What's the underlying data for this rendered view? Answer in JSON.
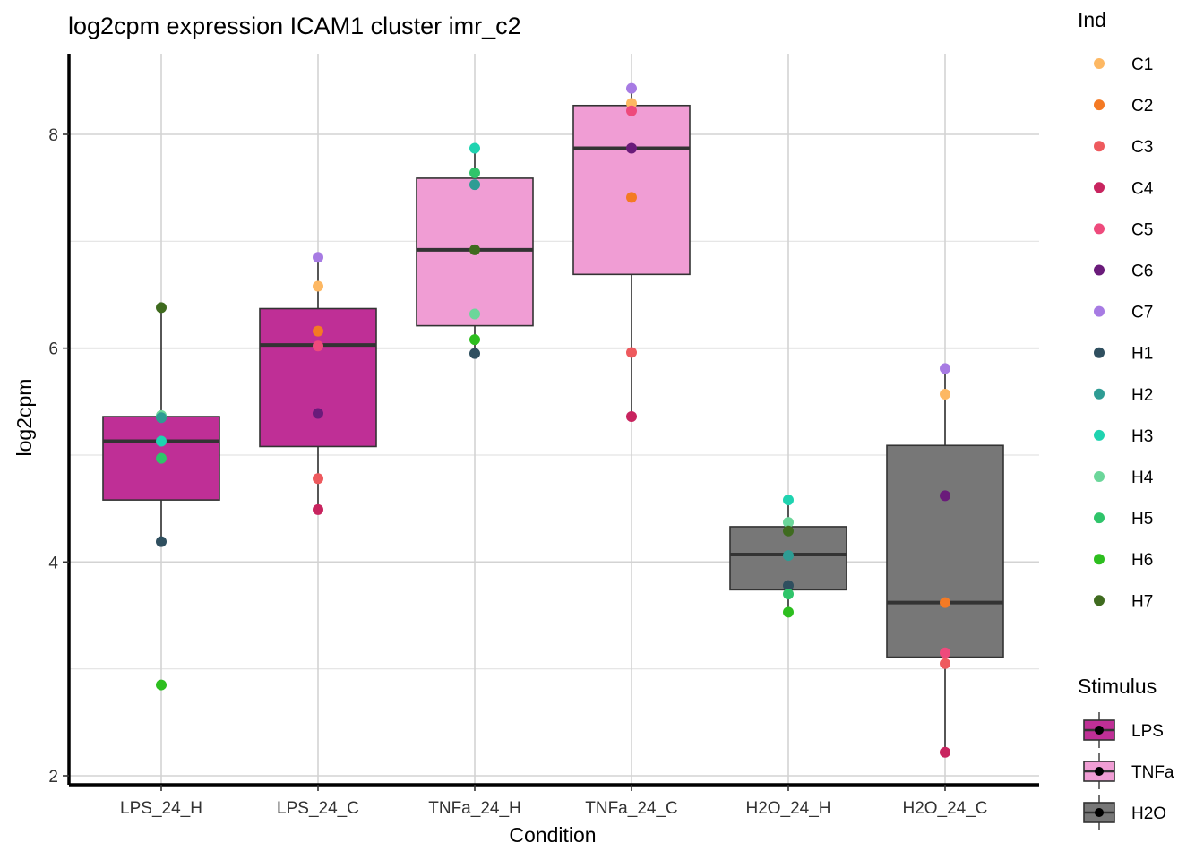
{
  "chart_data": {
    "type": "boxplot",
    "title": "log2cpm expression ICAM1 cluster imr_c2",
    "xlabel": "Condition",
    "ylabel": "log2cpm",
    "ylim": [
      1.9,
      8.75
    ],
    "yticks": [
      2,
      4,
      6,
      8
    ],
    "ygrid_minor": [
      3,
      5,
      7
    ],
    "grid": true,
    "categories": [
      "LPS_24_H",
      "LPS_24_C",
      "TNFa_24_H",
      "TNFa_24_C",
      "H2O_24_H",
      "H2O_24_C"
    ],
    "boxes": [
      {
        "category": "LPS_24_H",
        "stimulus": "LPS",
        "lower_whisker": 4.19,
        "q1": 4.58,
        "median": 5.13,
        "q3": 5.36,
        "upper_whisker": 6.38
      },
      {
        "category": "LPS_24_C",
        "stimulus": "LPS",
        "lower_whisker": 4.49,
        "q1": 5.08,
        "median": 6.03,
        "q3": 6.37,
        "upper_whisker": 6.85
      },
      {
        "category": "TNFa_24_H",
        "stimulus": "TNFa",
        "lower_whisker": 5.95,
        "q1": 6.21,
        "median": 6.92,
        "q3": 7.59,
        "upper_whisker": 7.87
      },
      {
        "category": "TNFa_24_C",
        "stimulus": "TNFa",
        "lower_whisker": 5.36,
        "q1": 6.69,
        "median": 7.87,
        "q3": 8.27,
        "upper_whisker": 8.43
      },
      {
        "category": "H2O_24_H",
        "stimulus": "H2O",
        "lower_whisker": 3.53,
        "q1": 3.74,
        "median": 4.07,
        "q3": 4.33,
        "upper_whisker": 4.58
      },
      {
        "category": "H2O_24_C",
        "stimulus": "H2O",
        "lower_whisker": 2.22,
        "q1": 3.11,
        "median": 3.62,
        "q3": 5.09,
        "upper_whisker": 5.81
      }
    ],
    "points": [
      {
        "category": "LPS_24_H",
        "ind": "H7",
        "value": 6.38
      },
      {
        "category": "LPS_24_H",
        "ind": "H4",
        "value": 5.37
      },
      {
        "category": "LPS_24_H",
        "ind": "H2",
        "value": 5.35
      },
      {
        "category": "LPS_24_H",
        "ind": "H3",
        "value": 5.13
      },
      {
        "category": "LPS_24_H",
        "ind": "H5",
        "value": 4.97
      },
      {
        "category": "LPS_24_H",
        "ind": "H1",
        "value": 4.19
      },
      {
        "category": "LPS_24_H",
        "ind": "H6",
        "value": 2.85
      },
      {
        "category": "LPS_24_C",
        "ind": "C7",
        "value": 6.85
      },
      {
        "category": "LPS_24_C",
        "ind": "C1",
        "value": 6.58
      },
      {
        "category": "LPS_24_C",
        "ind": "C2",
        "value": 6.16
      },
      {
        "category": "LPS_24_C",
        "ind": "C5",
        "value": 6.02
      },
      {
        "category": "LPS_24_C",
        "ind": "C6",
        "value": 5.39
      },
      {
        "category": "LPS_24_C",
        "ind": "C3",
        "value": 4.78
      },
      {
        "category": "LPS_24_C",
        "ind": "C4",
        "value": 4.49
      },
      {
        "category": "TNFa_24_H",
        "ind": "H3",
        "value": 7.87
      },
      {
        "category": "TNFa_24_H",
        "ind": "H5",
        "value": 7.64
      },
      {
        "category": "TNFa_24_H",
        "ind": "H2",
        "value": 7.53
      },
      {
        "category": "TNFa_24_H",
        "ind": "H7",
        "value": 6.92
      },
      {
        "category": "TNFa_24_H",
        "ind": "H4",
        "value": 6.32
      },
      {
        "category": "TNFa_24_H",
        "ind": "H6",
        "value": 6.08
      },
      {
        "category": "TNFa_24_H",
        "ind": "H1",
        "value": 5.95
      },
      {
        "category": "TNFa_24_C",
        "ind": "C7",
        "value": 8.43
      },
      {
        "category": "TNFa_24_C",
        "ind": "C1",
        "value": 8.29
      },
      {
        "category": "TNFa_24_C",
        "ind": "C5",
        "value": 8.22
      },
      {
        "category": "TNFa_24_C",
        "ind": "C6",
        "value": 7.87
      },
      {
        "category": "TNFa_24_C",
        "ind": "C2",
        "value": 7.41
      },
      {
        "category": "TNFa_24_C",
        "ind": "C3",
        "value": 5.96
      },
      {
        "category": "TNFa_24_C",
        "ind": "C4",
        "value": 5.36
      },
      {
        "category": "H2O_24_H",
        "ind": "H3",
        "value": 4.58
      },
      {
        "category": "H2O_24_H",
        "ind": "H4",
        "value": 4.37
      },
      {
        "category": "H2O_24_H",
        "ind": "H7",
        "value": 4.29
      },
      {
        "category": "H2O_24_H",
        "ind": "H2",
        "value": 4.06
      },
      {
        "category": "H2O_24_H",
        "ind": "H1",
        "value": 3.78
      },
      {
        "category": "H2O_24_H",
        "ind": "H5",
        "value": 3.7
      },
      {
        "category": "H2O_24_H",
        "ind": "H6",
        "value": 3.53
      },
      {
        "category": "H2O_24_C",
        "ind": "C7",
        "value": 5.81
      },
      {
        "category": "H2O_24_C",
        "ind": "C1",
        "value": 5.57
      },
      {
        "category": "H2O_24_C",
        "ind": "C6",
        "value": 4.62
      },
      {
        "category": "H2O_24_C",
        "ind": "C2",
        "value": 3.62
      },
      {
        "category": "H2O_24_C",
        "ind": "C5",
        "value": 3.15
      },
      {
        "category": "H2O_24_C",
        "ind": "C3",
        "value": 3.05
      },
      {
        "category": "H2O_24_C",
        "ind": "C4",
        "value": 2.22
      }
    ],
    "legend_ind": {
      "title": "Ind",
      "entries": [
        {
          "label": "C1",
          "color": "#FDB863"
        },
        {
          "label": "C2",
          "color": "#F47A24"
        },
        {
          "label": "C3",
          "color": "#EE5A5E"
        },
        {
          "label": "C4",
          "color": "#C8245F"
        },
        {
          "label": "C5",
          "color": "#EE4A7C"
        },
        {
          "label": "C6",
          "color": "#6A1B7A"
        },
        {
          "label": "C7",
          "color": "#A77BE3"
        },
        {
          "label": "H1",
          "color": "#2F4F5F"
        },
        {
          "label": "H2",
          "color": "#2E9C94"
        },
        {
          "label": "H3",
          "color": "#1FD3B0"
        },
        {
          "label": "H4",
          "color": "#6BD69A"
        },
        {
          "label": "H5",
          "color": "#2FC46A"
        },
        {
          "label": "H6",
          "color": "#2DBE1F"
        },
        {
          "label": "H7",
          "color": "#3F6B1F"
        }
      ]
    },
    "legend_stimulus": {
      "title": "Stimulus",
      "entries": [
        {
          "label": "LPS",
          "color": "#BF2F96"
        },
        {
          "label": "TNFa",
          "color": "#F09DD4"
        },
        {
          "label": "H2O",
          "color": "#777777"
        }
      ]
    },
    "legend_placement": "right"
  }
}
